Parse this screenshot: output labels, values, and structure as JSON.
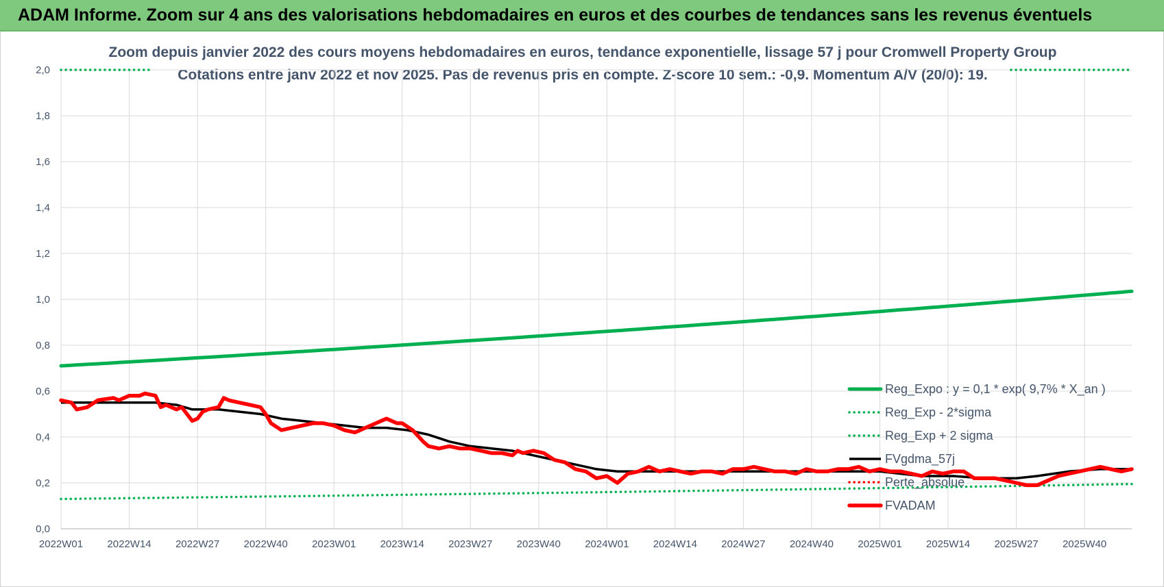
{
  "banner": {
    "title": "ADAM Informe. Zoom sur 4 ans des valorisations hebdomadaires en euros et des courbes de tendances sans les revenus éventuels"
  },
  "chart_data": {
    "type": "line",
    "title_line1": "Zoom depuis janvier 2022 des cours moyens hebdomadaires en euros, tendance exponentielle, lissage 57 j pour Cromwell Property Group",
    "title_line2": "Cotations entre janv 2022 et nov 2025. Pas de revenus pris en compte. Z-score 10 sem.: -0,9. Momentum A/V (20/0): 19.",
    "x_tick_labels": [
      "2022W01",
      "2022W14",
      "2022W27",
      "2022W40",
      "2023W01",
      "2023W14",
      "2023W27",
      "2023W40",
      "2024W01",
      "2024W14",
      "2024W27",
      "2024W40",
      "2025W01",
      "2025W14",
      "2025W27",
      "2025W40"
    ],
    "y_tick_labels": [
      "0,0",
      "0,2",
      "0,4",
      "0,6",
      "0,8",
      "1,0",
      "1,2",
      "1,4",
      "1,6",
      "1,8",
      "2,0"
    ],
    "ylim": [
      0,
      2.0
    ],
    "x_weeks": 205,
    "colors": {
      "reg_expo": "#00b050",
      "sigma": "#00b050",
      "fvgdma": "#000000",
      "perte": "#ff0000",
      "fvadam": "#ff0000",
      "grid": "#d9d9d9",
      "text": "#44546a"
    },
    "series": [
      {
        "name": "Reg_Expo : y = 0,1 * exp( 9,7% *  X_an )",
        "style": "solid-thick-green",
        "start": 0.71,
        "end": 1.035
      },
      {
        "name": "Reg_Exp - 2*sigma",
        "style": "dotted-green",
        "start": 0.13,
        "end": 0.195
      },
      {
        "name": "Reg_Exp + 2 sigma",
        "style": "dotted-green",
        "value": 2.0,
        "visible_ranges": [
          [
            0,
            17
          ],
          [
            181,
            204
          ]
        ]
      },
      {
        "name": "FVgdma_57j",
        "style": "solid-black",
        "points": [
          [
            0,
            0.55
          ],
          [
            10,
            0.55
          ],
          [
            14,
            0.55
          ],
          [
            18,
            0.55
          ],
          [
            22,
            0.54
          ],
          [
            25,
            0.52
          ],
          [
            30,
            0.52
          ],
          [
            34,
            0.51
          ],
          [
            38,
            0.5
          ],
          [
            42,
            0.48
          ],
          [
            46,
            0.47
          ],
          [
            50,
            0.46
          ],
          [
            54,
            0.45
          ],
          [
            58,
            0.44
          ],
          [
            62,
            0.44
          ],
          [
            66,
            0.43
          ],
          [
            70,
            0.41
          ],
          [
            74,
            0.38
          ],
          [
            78,
            0.36
          ],
          [
            82,
            0.35
          ],
          [
            86,
            0.34
          ],
          [
            90,
            0.32
          ],
          [
            94,
            0.3
          ],
          [
            98,
            0.28
          ],
          [
            102,
            0.26
          ],
          [
            106,
            0.25
          ],
          [
            110,
            0.25
          ],
          [
            114,
            0.25
          ],
          [
            120,
            0.25
          ],
          [
            130,
            0.25
          ],
          [
            140,
            0.25
          ],
          [
            150,
            0.25
          ],
          [
            156,
            0.25
          ],
          [
            160,
            0.24
          ],
          [
            164,
            0.23
          ],
          [
            170,
            0.23
          ],
          [
            176,
            0.22
          ],
          [
            182,
            0.22
          ],
          [
            186,
            0.23
          ],
          [
            192,
            0.25
          ],
          [
            198,
            0.26
          ],
          [
            204,
            0.26
          ]
        ]
      },
      {
        "name": "Perte_absolue",
        "style": "dotted-red",
        "points": []
      },
      {
        "name": "FVADAM",
        "style": "solid-thick-red",
        "points": [
          [
            0,
            0.56
          ],
          [
            2,
            0.55
          ],
          [
            3,
            0.52
          ],
          [
            5,
            0.53
          ],
          [
            7,
            0.56
          ],
          [
            10,
            0.57
          ],
          [
            11,
            0.56
          ],
          [
            13,
            0.58
          ],
          [
            15,
            0.58
          ],
          [
            16,
            0.59
          ],
          [
            18,
            0.58
          ],
          [
            19,
            0.53
          ],
          [
            20,
            0.54
          ],
          [
            22,
            0.52
          ],
          [
            23,
            0.53
          ],
          [
            25,
            0.47
          ],
          [
            26,
            0.48
          ],
          [
            27,
            0.51
          ],
          [
            28,
            0.52
          ],
          [
            30,
            0.53
          ],
          [
            31,
            0.57
          ],
          [
            32,
            0.56
          ],
          [
            34,
            0.55
          ],
          [
            36,
            0.54
          ],
          [
            38,
            0.53
          ],
          [
            39,
            0.5
          ],
          [
            40,
            0.46
          ],
          [
            42,
            0.43
          ],
          [
            44,
            0.44
          ],
          [
            46,
            0.45
          ],
          [
            48,
            0.46
          ],
          [
            50,
            0.46
          ],
          [
            52,
            0.45
          ],
          [
            54,
            0.43
          ],
          [
            56,
            0.42
          ],
          [
            58,
            0.44
          ],
          [
            60,
            0.46
          ],
          [
            62,
            0.48
          ],
          [
            64,
            0.46
          ],
          [
            65,
            0.46
          ],
          [
            67,
            0.43
          ],
          [
            69,
            0.38
          ],
          [
            70,
            0.36
          ],
          [
            72,
            0.35
          ],
          [
            74,
            0.36
          ],
          [
            76,
            0.35
          ],
          [
            78,
            0.35
          ],
          [
            80,
            0.34
          ],
          [
            82,
            0.33
          ],
          [
            84,
            0.33
          ],
          [
            86,
            0.32
          ],
          [
            87,
            0.34
          ],
          [
            88,
            0.33
          ],
          [
            90,
            0.34
          ],
          [
            92,
            0.33
          ],
          [
            94,
            0.3
          ],
          [
            96,
            0.29
          ],
          [
            98,
            0.26
          ],
          [
            100,
            0.25
          ],
          [
            102,
            0.22
          ],
          [
            104,
            0.23
          ],
          [
            106,
            0.2
          ],
          [
            108,
            0.24
          ],
          [
            110,
            0.25
          ],
          [
            112,
            0.27
          ],
          [
            114,
            0.25
          ],
          [
            116,
            0.26
          ],
          [
            118,
            0.25
          ],
          [
            120,
            0.24
          ],
          [
            122,
            0.25
          ],
          [
            124,
            0.25
          ],
          [
            126,
            0.24
          ],
          [
            128,
            0.26
          ],
          [
            130,
            0.26
          ],
          [
            132,
            0.27
          ],
          [
            134,
            0.26
          ],
          [
            136,
            0.25
          ],
          [
            138,
            0.25
          ],
          [
            140,
            0.24
          ],
          [
            142,
            0.26
          ],
          [
            144,
            0.25
          ],
          [
            146,
            0.25
          ],
          [
            148,
            0.26
          ],
          [
            150,
            0.26
          ],
          [
            152,
            0.27
          ],
          [
            154,
            0.25
          ],
          [
            156,
            0.26
          ],
          [
            158,
            0.25
          ],
          [
            160,
            0.25
          ],
          [
            162,
            0.24
          ],
          [
            164,
            0.23
          ],
          [
            166,
            0.25
          ],
          [
            168,
            0.24
          ],
          [
            170,
            0.25
          ],
          [
            172,
            0.25
          ],
          [
            174,
            0.22
          ],
          [
            176,
            0.22
          ],
          [
            178,
            0.22
          ],
          [
            180,
            0.21
          ],
          [
            182,
            0.2
          ],
          [
            184,
            0.19
          ],
          [
            186,
            0.19
          ],
          [
            188,
            0.21
          ],
          [
            190,
            0.23
          ],
          [
            192,
            0.24
          ],
          [
            194,
            0.25
          ],
          [
            196,
            0.26
          ],
          [
            198,
            0.27
          ],
          [
            200,
            0.26
          ],
          [
            202,
            0.25
          ],
          [
            204,
            0.26
          ]
        ]
      }
    ],
    "legend": {
      "placement": "bottom-right",
      "entries": [
        {
          "label": "Reg_Expo : y = 0,1 * exp( 9,7% *  X_an )",
          "style": "solid-thick-green"
        },
        {
          "label": "Reg_Exp - 2*sigma",
          "style": "dotted-green"
        },
        {
          "label": "Reg_Exp + 2 sigma",
          "style": "dotted-green"
        },
        {
          "label": "FVgdma_57j",
          "style": "solid-black"
        },
        {
          "label": "Perte_absolue",
          "style": "dotted-red"
        },
        {
          "label": "FVADAM",
          "style": "solid-thick-red"
        }
      ]
    }
  }
}
